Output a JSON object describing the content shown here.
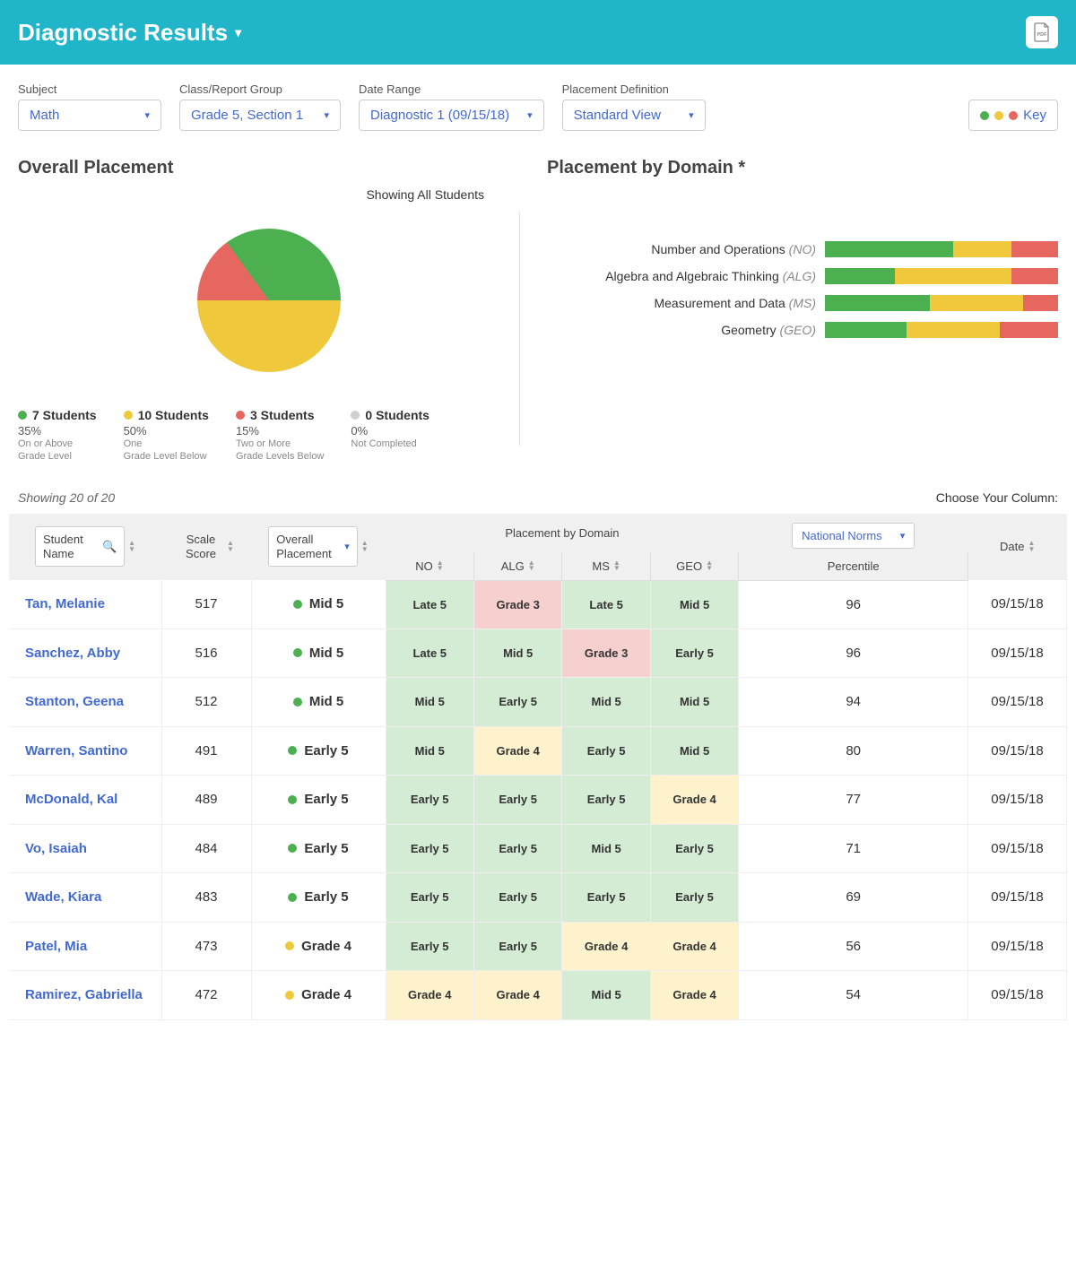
{
  "header": {
    "title": "Diagnostic Results"
  },
  "filters": {
    "subject": {
      "label": "Subject",
      "value": "Math"
    },
    "class": {
      "label": "Class/Report Group",
      "value": "Grade 5, Section 1"
    },
    "date_range": {
      "label": "Date Range",
      "value": "Diagnostic 1 (09/15/18)"
    },
    "placement": {
      "label": "Placement Definition",
      "value": "Standard View"
    },
    "key_label": "Key"
  },
  "colors": {
    "green": "#4caf50",
    "yellow": "#f0c83c",
    "red": "#e66760",
    "gray": "#d0d0d0",
    "link": "#4169d1"
  },
  "overall": {
    "title": "Overall Placement",
    "showing": "Showing All Students",
    "pie": {
      "slices": [
        {
          "color": "#4caf50",
          "pct": 35
        },
        {
          "color": "#f0c83c",
          "pct": 50
        },
        {
          "color": "#e66760",
          "pct": 15
        }
      ]
    },
    "legend": [
      {
        "count": "7 Students",
        "pct": "35%",
        "desc1": "On or Above",
        "desc2": "Grade Level",
        "color": "#4caf50"
      },
      {
        "count": "10 Students",
        "pct": "50%",
        "desc1": "One",
        "desc2": "Grade Level Below",
        "color": "#f0c83c"
      },
      {
        "count": "3 Students",
        "pct": "15%",
        "desc1": "Two or More",
        "desc2": "Grade Levels Below",
        "color": "#e66760"
      },
      {
        "count": "0 Students",
        "pct": "0%",
        "desc1": "Not Completed",
        "desc2": "",
        "color": "#d0d0d0"
      }
    ]
  },
  "by_domain": {
    "title": "Placement by Domain *",
    "rows": [
      {
        "label": "Number and Operations",
        "abbr": "(NO)",
        "segs": [
          55,
          25,
          20
        ]
      },
      {
        "label": "Algebra and Algebraic Thinking",
        "abbr": "(ALG)",
        "segs": [
          30,
          50,
          20
        ]
      },
      {
        "label": "Measurement and Data",
        "abbr": "(MS)",
        "segs": [
          45,
          40,
          15
        ]
      },
      {
        "label": "Geometry",
        "abbr": "(GEO)",
        "segs": [
          35,
          40,
          25
        ]
      }
    ]
  },
  "table_meta": {
    "showing": "Showing 20 of 20",
    "col_choose": "Choose Your Column:"
  },
  "table": {
    "headers": {
      "name": "Student Name",
      "score": "Scale Score",
      "placement": "Overall Placement",
      "domain_group": "Placement by Domain",
      "no": "NO",
      "alg": "ALG",
      "ms": "MS",
      "geo": "GEO",
      "national": "National Norms",
      "percentile": "Percentile",
      "date": "Date"
    },
    "rows": [
      {
        "name": "Tan, Melanie",
        "score": "517",
        "place": "Mid 5",
        "pcolor": "g",
        "d": [
          [
            "Late 5",
            "g"
          ],
          [
            "Grade 3",
            "r"
          ],
          [
            "Late 5",
            "g"
          ],
          [
            "Mid 5",
            "g"
          ]
        ],
        "pct": "96",
        "date": "09/15/18"
      },
      {
        "name": "Sanchez, Abby",
        "score": "516",
        "place": "Mid 5",
        "pcolor": "g",
        "d": [
          [
            "Late 5",
            "g"
          ],
          [
            "Mid 5",
            "g"
          ],
          [
            "Grade 3",
            "r"
          ],
          [
            "Early 5",
            "g"
          ]
        ],
        "pct": "96",
        "date": "09/15/18"
      },
      {
        "name": "Stanton, Geena",
        "score": "512",
        "place": "Mid 5",
        "pcolor": "g",
        "d": [
          [
            "Mid 5",
            "g"
          ],
          [
            "Early 5",
            "g"
          ],
          [
            "Mid 5",
            "g"
          ],
          [
            "Mid 5",
            "g"
          ]
        ],
        "pct": "94",
        "date": "09/15/18"
      },
      {
        "name": "Warren, Santino",
        "score": "491",
        "place": "Early 5",
        "pcolor": "g",
        "d": [
          [
            "Mid 5",
            "g"
          ],
          [
            "Grade 4",
            "y"
          ],
          [
            "Early 5",
            "g"
          ],
          [
            "Mid 5",
            "g"
          ]
        ],
        "pct": "80",
        "date": "09/15/18"
      },
      {
        "name": "McDonald, Kal",
        "score": "489",
        "place": "Early 5",
        "pcolor": "g",
        "d": [
          [
            "Early 5",
            "g"
          ],
          [
            "Early 5",
            "g"
          ],
          [
            "Early 5",
            "g"
          ],
          [
            "Grade 4",
            "y"
          ]
        ],
        "pct": "77",
        "date": "09/15/18"
      },
      {
        "name": "Vo, Isaiah",
        "score": "484",
        "place": "Early 5",
        "pcolor": "g",
        "d": [
          [
            "Early 5",
            "g"
          ],
          [
            "Early 5",
            "g"
          ],
          [
            "Mid 5",
            "g"
          ],
          [
            "Early 5",
            "g"
          ]
        ],
        "pct": "71",
        "date": "09/15/18"
      },
      {
        "name": "Wade, Kiara",
        "score": "483",
        "place": "Early 5",
        "pcolor": "g",
        "d": [
          [
            "Early 5",
            "g"
          ],
          [
            "Early 5",
            "g"
          ],
          [
            "Early 5",
            "g"
          ],
          [
            "Early 5",
            "g"
          ]
        ],
        "pct": "69",
        "date": "09/15/18"
      },
      {
        "name": "Patel, Mia",
        "score": "473",
        "place": "Grade 4",
        "pcolor": "y",
        "d": [
          [
            "Early 5",
            "g"
          ],
          [
            "Early 5",
            "g"
          ],
          [
            "Grade 4",
            "y"
          ],
          [
            "Grade 4",
            "y"
          ]
        ],
        "pct": "56",
        "date": "09/15/18"
      },
      {
        "name": "Ramirez, Gabriella",
        "score": "472",
        "place": "Grade 4",
        "pcolor": "y",
        "d": [
          [
            "Grade 4",
            "y"
          ],
          [
            "Grade 4",
            "y"
          ],
          [
            "Mid 5",
            "g"
          ],
          [
            "Grade 4",
            "y"
          ]
        ],
        "pct": "54",
        "date": "09/15/18"
      }
    ]
  }
}
